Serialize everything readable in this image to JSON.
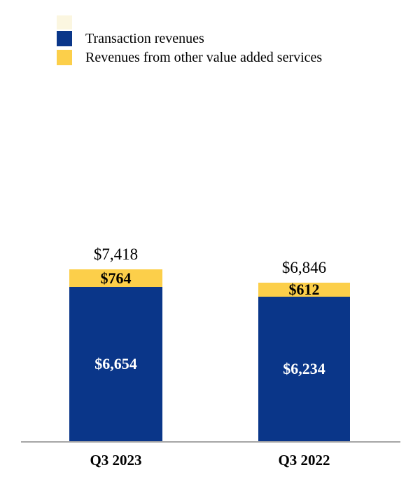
{
  "chart_data": {
    "type": "bar",
    "stacked": true,
    "orientation": "vertical",
    "categories": [
      "Q3 2023",
      "Q3 2022"
    ],
    "series": [
      {
        "name": "Transaction revenues",
        "color": "#0a3689",
        "values": [
          6654,
          6234
        ],
        "value_labels": [
          "$6,654",
          "$6,234"
        ]
      },
      {
        "name": "Revenues from other value added services",
        "color": "#fccf4a",
        "values": [
          764,
          612
        ],
        "value_labels": [
          "$764",
          "$612"
        ]
      }
    ],
    "totals": [
      7418,
      6846
    ],
    "total_labels": [
      "$7,418",
      "$6,846"
    ],
    "legend_position": "top-left",
    "grid": false,
    "x_axis_line": true,
    "axis_line_color": "#a6a6a6",
    "value_label_color_on_blue": "#ffffff",
    "value_label_color_on_yellow": "#000000"
  }
}
